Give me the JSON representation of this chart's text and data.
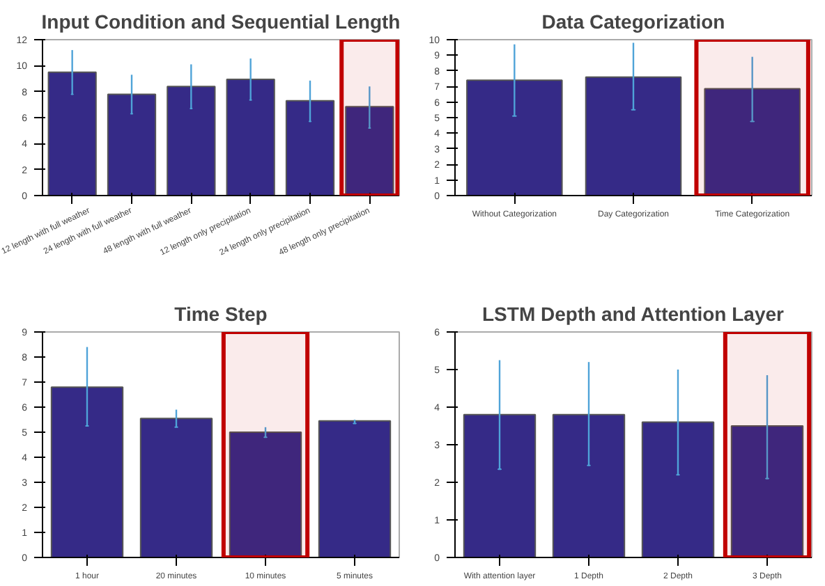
{
  "chart_data": [
    {
      "type": "bar",
      "title": "Input Condition and Sequential Length",
      "categories": [
        "12 length with full weather",
        "24 length with full weather",
        "48 length with full weather",
        "12 length only precipitation",
        "24 length only precipitation",
        "48 length only precipitation"
      ],
      "values": [
        9.5,
        7.8,
        8.4,
        8.95,
        7.3,
        6.85
      ],
      "errors": [
        [
          7.8,
          11.2
        ],
        [
          6.3,
          9.3
        ],
        [
          6.7,
          10.1
        ],
        [
          7.35,
          10.55
        ],
        [
          5.7,
          8.85
        ],
        [
          5.2,
          8.4
        ]
      ],
      "color": "#352a87",
      "ylim": [
        0,
        12
      ],
      "yticks": [
        0,
        2,
        4,
        6,
        8,
        10,
        12
      ],
      "grid": false,
      "bands": [
        {
          "axis": "x",
          "from": "48 length only precipitation",
          "to": "48 length only precipitation",
          "color": "#c00000"
        }
      ]
    },
    {
      "type": "bar",
      "title": "Data Categorization",
      "categories": [
        "Without Categorization",
        "Day Categorization",
        "Time Categorization"
      ],
      "values": [
        7.4,
        7.6,
        6.85
      ],
      "errors": [
        [
          5.1,
          9.7
        ],
        [
          5.5,
          9.8
        ],
        [
          4.75,
          8.9
        ]
      ],
      "color": "#352a87",
      "ylim": [
        0,
        10
      ],
      "yticks": [
        0,
        1,
        2,
        3,
        4,
        5,
        6,
        7,
        8,
        9,
        10
      ],
      "grid": false,
      "bands": [
        {
          "axis": "x",
          "from": "Time Categorization",
          "to": "Time Categorization",
          "color": "#c00000"
        }
      ]
    },
    {
      "type": "bar",
      "title": "Time Step",
      "categories": [
        "1 hour",
        "20 minutes",
        "10 minutes",
        "5 minutes"
      ],
      "values": [
        6.8,
        5.55,
        5.0,
        5.45
      ],
      "errors": [
        [
          5.25,
          8.4
        ],
        [
          5.2,
          5.9
        ],
        [
          4.8,
          5.2
        ],
        [
          5.35,
          5.5
        ]
      ],
      "color": "#352a87",
      "ylim": [
        0,
        9
      ],
      "yticks": [
        0,
        1,
        2,
        3,
        4,
        5,
        6,
        7,
        8,
        9
      ],
      "grid": false,
      "bands": [
        {
          "axis": "x",
          "from": "10 minutes",
          "to": "10 minutes",
          "color": "#c00000"
        }
      ]
    },
    {
      "type": "bar",
      "title": "LSTM Depth and Attention Layer",
      "categories": [
        "With attention layer",
        "1 Depth",
        "2 Depth",
        "3 Depth"
      ],
      "values": [
        3.8,
        3.8,
        3.6,
        3.5
      ],
      "errors": [
        [
          2.35,
          5.25
        ],
        [
          2.45,
          5.2
        ],
        [
          2.2,
          5.0
        ],
        [
          2.1,
          4.85
        ]
      ],
      "color": "#352a87",
      "ylim": [
        0,
        6
      ],
      "yticks": [
        0,
        1,
        2,
        3,
        4,
        5,
        6
      ],
      "grid": false,
      "bands": [
        {
          "axis": "x",
          "from": "3 Depth",
          "to": "3 Depth",
          "color": "#c00000"
        }
      ]
    }
  ]
}
